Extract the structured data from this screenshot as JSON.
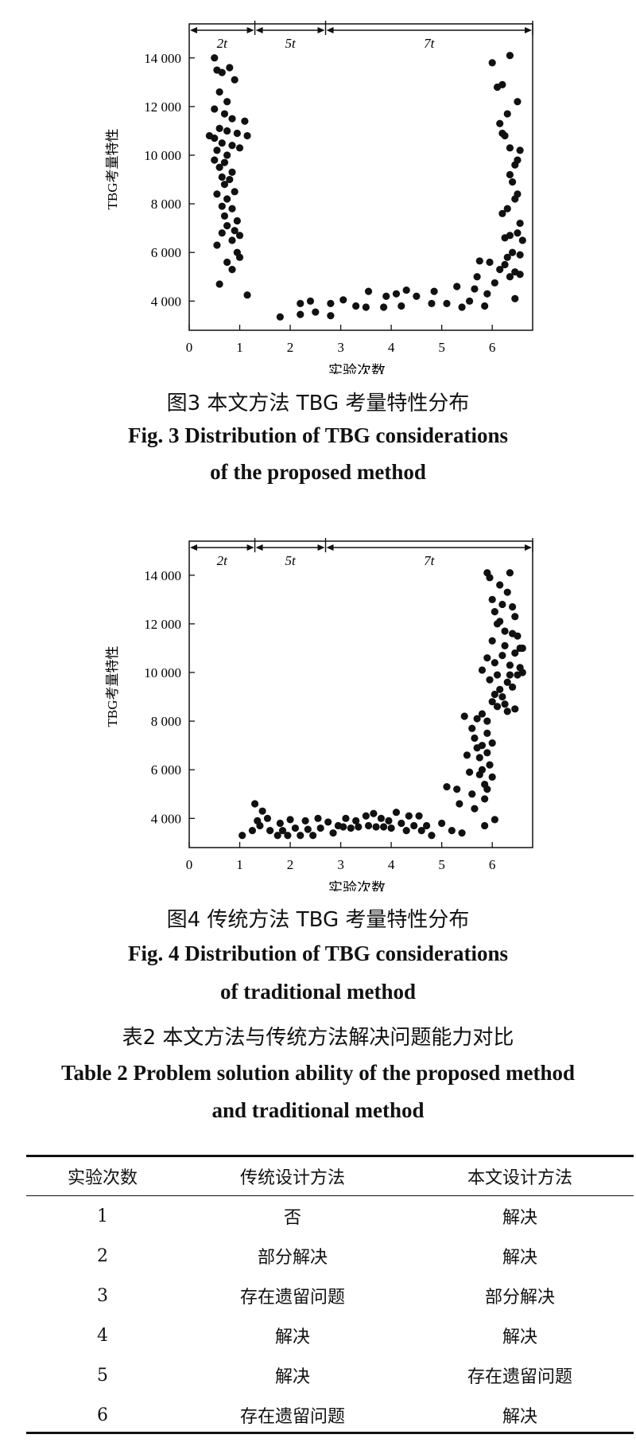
{
  "chart_data": [
    {
      "type": "scatter",
      "ylabel": "TBG考量特性",
      "xlabel": "实验次数",
      "xlim": [
        0,
        6.8
      ],
      "ylim": [
        2800,
        15400
      ],
      "xticks": [
        "0",
        "1",
        "2",
        "3",
        "4",
        "5",
        "6"
      ],
      "yticks": [
        "4 000",
        "6 000",
        "8 000",
        "10 000",
        "12 000",
        "14 000"
      ],
      "phases": [
        {
          "label": "2t",
          "from": 0,
          "to": 1.3
        },
        {
          "label": "5t",
          "from": 1.3,
          "to": 2.7
        },
        {
          "label": "7t",
          "from": 2.7,
          "to": 6.8
        }
      ],
      "points": [
        [
          0.5,
          14000
        ],
        [
          0.65,
          13400
        ],
        [
          0.8,
          13600
        ],
        [
          0.9,
          13100
        ],
        [
          0.55,
          13500
        ],
        [
          0.6,
          12600
        ],
        [
          0.75,
          12200
        ],
        [
          0.5,
          11900
        ],
        [
          0.7,
          11700
        ],
        [
          0.85,
          11500
        ],
        [
          1.1,
          11400
        ],
        [
          0.6,
          11100
        ],
        [
          0.75,
          11000
        ],
        [
          0.95,
          10900
        ],
        [
          1.15,
          10800
        ],
        [
          0.5,
          10700
        ],
        [
          0.4,
          10800
        ],
        [
          0.65,
          10500
        ],
        [
          0.85,
          10400
        ],
        [
          1.0,
          10300
        ],
        [
          0.55,
          10200
        ],
        [
          0.75,
          10000
        ],
        [
          0.5,
          9800
        ],
        [
          0.7,
          9700
        ],
        [
          0.6,
          9500
        ],
        [
          0.85,
          9300
        ],
        [
          0.65,
          9100
        ],
        [
          0.8,
          9000
        ],
        [
          0.7,
          8800
        ],
        [
          0.9,
          8500
        ],
        [
          0.55,
          8400
        ],
        [
          0.75,
          8200
        ],
        [
          0.65,
          7900
        ],
        [
          0.85,
          7800
        ],
        [
          0.7,
          7500
        ],
        [
          0.95,
          7300
        ],
        [
          0.75,
          7100
        ],
        [
          0.9,
          6900
        ],
        [
          1.0,
          6700
        ],
        [
          0.65,
          6800
        ],
        [
          0.55,
          6300
        ],
        [
          0.85,
          6500
        ],
        [
          0.95,
          6000
        ],
        [
          0.75,
          5600
        ],
        [
          1.0,
          5800
        ],
        [
          0.85,
          5300
        ],
        [
          0.6,
          4700
        ],
        [
          1.15,
          4250
        ],
        [
          1.8,
          3350
        ],
        [
          2.2,
          3900
        ],
        [
          2.2,
          3450
        ],
        [
          2.4,
          4000
        ],
        [
          2.5,
          3550
        ],
        [
          2.8,
          3900
        ],
        [
          2.8,
          3400
        ],
        [
          3.05,
          4050
        ],
        [
          3.3,
          3800
        ],
        [
          3.5,
          3750
        ],
        [
          3.55,
          4400
        ],
        [
          3.85,
          3750
        ],
        [
          3.9,
          4200
        ],
        [
          4.1,
          4300
        ],
        [
          4.2,
          3800
        ],
        [
          4.3,
          4450
        ],
        [
          4.5,
          4200
        ],
        [
          4.8,
          3900
        ],
        [
          4.85,
          4400
        ],
        [
          5.1,
          3900
        ],
        [
          5.3,
          4600
        ],
        [
          5.4,
          3750
        ],
        [
          5.55,
          4000
        ],
        [
          5.65,
          4500
        ],
        [
          5.7,
          5000
        ],
        [
          5.75,
          5650
        ],
        [
          5.85,
          3800
        ],
        [
          5.9,
          4300
        ],
        [
          5.95,
          5600
        ],
        [
          6.05,
          4750
        ],
        [
          6.0,
          13800
        ],
        [
          6.1,
          12800
        ],
        [
          6.2,
          12900
        ],
        [
          6.35,
          14100
        ],
        [
          6.5,
          12200
        ],
        [
          6.15,
          11300
        ],
        [
          6.3,
          11700
        ],
        [
          6.2,
          10900
        ],
        [
          6.25,
          10800
        ],
        [
          6.35,
          10300
        ],
        [
          6.55,
          10200
        ],
        [
          6.45,
          9600
        ],
        [
          6.5,
          9800
        ],
        [
          6.35,
          9200
        ],
        [
          6.4,
          8900
        ],
        [
          6.5,
          8400
        ],
        [
          6.45,
          8200
        ],
        [
          6.3,
          7800
        ],
        [
          6.2,
          7600
        ],
        [
          6.55,
          7200
        ],
        [
          6.35,
          6700
        ],
        [
          6.5,
          6800
        ],
        [
          6.25,
          6600
        ],
        [
          6.6,
          6500
        ],
        [
          6.4,
          6000
        ],
        [
          6.3,
          5800
        ],
        [
          6.55,
          5900
        ],
        [
          6.15,
          5300
        ],
        [
          6.45,
          5200
        ],
        [
          6.35,
          5000
        ],
        [
          6.25,
          5500
        ],
        [
          6.55,
          5100
        ],
        [
          6.45,
          4100
        ]
      ]
    },
    {
      "type": "scatter",
      "ylabel": "TBG考量特性",
      "xlabel": "实验次数",
      "xlim": [
        0,
        6.8
      ],
      "ylim": [
        2800,
        15400
      ],
      "xticks": [
        "0",
        "1",
        "2",
        "3",
        "4",
        "5",
        "6"
      ],
      "yticks": [
        "4 000",
        "6 000",
        "8 000",
        "10 000",
        "12 000",
        "14 000"
      ],
      "phases": [
        {
          "label": "2t",
          "from": 0,
          "to": 1.3
        },
        {
          "label": "5t",
          "from": 1.3,
          "to": 2.7
        },
        {
          "label": "7t",
          "from": 2.7,
          "to": 6.8
        }
      ],
      "points": [
        [
          1.05,
          3300
        ],
        [
          1.25,
          3500
        ],
        [
          1.3,
          4600
        ],
        [
          1.35,
          3900
        ],
        [
          1.45,
          4300
        ],
        [
          1.4,
          3700
        ],
        [
          1.55,
          4000
        ],
        [
          1.6,
          3500
        ],
        [
          1.75,
          3300
        ],
        [
          1.8,
          3800
        ],
        [
          1.85,
          3500
        ],
        [
          1.95,
          3300
        ],
        [
          2.0,
          3950
        ],
        [
          2.1,
          3600
        ],
        [
          2.2,
          3300
        ],
        [
          2.3,
          3900
        ],
        [
          2.35,
          3550
        ],
        [
          2.45,
          3300
        ],
        [
          2.55,
          4000
        ],
        [
          2.6,
          3600
        ],
        [
          2.75,
          3850
        ],
        [
          2.85,
          3400
        ],
        [
          2.95,
          3700
        ],
        [
          3.05,
          3650
        ],
        [
          3.1,
          4000
        ],
        [
          3.2,
          3600
        ],
        [
          3.3,
          3900
        ],
        [
          3.35,
          3650
        ],
        [
          3.5,
          4100
        ],
        [
          3.55,
          3700
        ],
        [
          3.65,
          4200
        ],
        [
          3.7,
          3650
        ],
        [
          3.8,
          4000
        ],
        [
          3.85,
          3650
        ],
        [
          3.95,
          3900
        ],
        [
          4.0,
          3600
        ],
        [
          4.1,
          4250
        ],
        [
          4.2,
          3800
        ],
        [
          4.3,
          3500
        ],
        [
          4.35,
          4100
        ],
        [
          4.45,
          3700
        ],
        [
          4.55,
          4100
        ],
        [
          4.6,
          3500
        ],
        [
          4.7,
          3700
        ],
        [
          4.8,
          3300
        ],
        [
          5.0,
          3800
        ],
        [
          5.1,
          5300
        ],
        [
          5.2,
          3500
        ],
        [
          5.3,
          5200
        ],
        [
          5.35,
          4600
        ],
        [
          5.4,
          3400
        ],
        [
          5.45,
          8200
        ],
        [
          5.5,
          6600
        ],
        [
          5.55,
          5900
        ],
        [
          5.6,
          5000
        ],
        [
          5.65,
          4400
        ],
        [
          5.6,
          7700
        ],
        [
          5.65,
          7300
        ],
        [
          5.7,
          8100
        ],
        [
          5.7,
          6900
        ],
        [
          5.75,
          6500
        ],
        [
          5.75,
          5800
        ],
        [
          5.8,
          8300
        ],
        [
          5.8,
          7000
        ],
        [
          5.8,
          6000
        ],
        [
          5.85,
          5400
        ],
        [
          5.85,
          4800
        ],
        [
          5.85,
          3700
        ],
        [
          5.9,
          8000
        ],
        [
          5.9,
          7500
        ],
        [
          5.9,
          6700
        ],
        [
          5.9,
          5200
        ],
        [
          5.95,
          6200
        ],
        [
          6.0,
          5700
        ],
        [
          6.0,
          7100
        ],
        [
          6.05,
          3950
        ],
        [
          5.8,
          10100
        ],
        [
          5.9,
          10600
        ],
        [
          5.95,
          9700
        ],
        [
          5.9,
          14100
        ],
        [
          5.95,
          13900
        ],
        [
          6.0,
          13000
        ],
        [
          6.05,
          12500
        ],
        [
          6.1,
          12000
        ],
        [
          6.15,
          13600
        ],
        [
          6.2,
          12800
        ],
        [
          6.25,
          11700
        ],
        [
          6.3,
          13300
        ],
        [
          6.35,
          14100
        ],
        [
          6.4,
          12700
        ],
        [
          6.45,
          12300
        ],
        [
          6.5,
          11500
        ],
        [
          6.55,
          11000
        ],
        [
          6.6,
          11000
        ],
        [
          6.6,
          10000
        ],
        [
          6.0,
          11300
        ],
        [
          6.05,
          10400
        ],
        [
          6.1,
          9900
        ],
        [
          6.15,
          9300
        ],
        [
          6.2,
          9000
        ],
        [
          6.25,
          8700
        ],
        [
          6.3,
          9600
        ],
        [
          6.35,
          10300
        ],
        [
          6.4,
          9400
        ],
        [
          6.45,
          8500
        ],
        [
          6.5,
          9900
        ],
        [
          6.55,
          10200
        ],
        [
          6.0,
          8800
        ],
        [
          6.1,
          8600
        ],
        [
          6.2,
          10700
        ],
        [
          6.25,
          11100
        ],
        [
          6.3,
          8400
        ],
        [
          6.4,
          11600
        ],
        [
          6.45,
          10800
        ],
        [
          6.05,
          9100
        ],
        [
          6.15,
          12100
        ],
        [
          6.35,
          9900
        ]
      ]
    }
  ],
  "captions": {
    "fig3_cn": "图3  本文方法 TBG 考量特性分布",
    "fig3_en_1": "Fig. 3  Distribution of TBG considerations",
    "fig3_en_2": "of the proposed method",
    "fig4_cn": "图4  传统方法 TBG 考量特性分布",
    "fig4_en_1": "Fig. 4  Distribution of TBG considerations",
    "fig4_en_2": "of traditional method",
    "table_cn": "表2  本文方法与传统方法解决问题能力对比",
    "table_en_1": "Table 2  Problem solution ability of the proposed method",
    "table_en_2": "and traditional method"
  },
  "table": {
    "headers": [
      "实验次数",
      "传统设计方法",
      "本文设计方法"
    ],
    "rows": [
      [
        "1",
        "否",
        "解决"
      ],
      [
        "2",
        "部分解决",
        "解决"
      ],
      [
        "3",
        "存在遗留问题",
        "部分解决"
      ],
      [
        "4",
        "解决",
        "解决"
      ],
      [
        "5",
        "解决",
        "存在遗留问题"
      ],
      [
        "6",
        "存在遗留问题",
        "解决"
      ]
    ]
  }
}
